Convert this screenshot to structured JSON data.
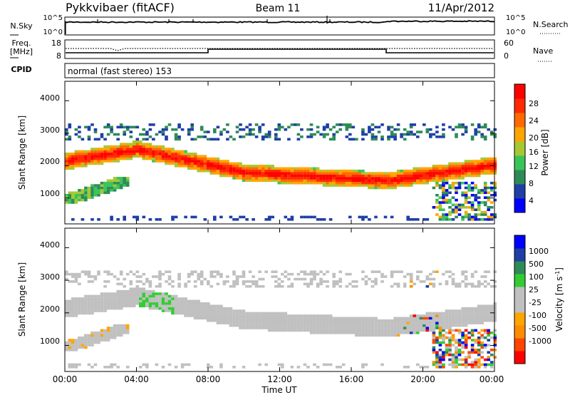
{
  "header": {
    "radar": "Pykkvibaer (fitACF)",
    "beam": "Beam 11",
    "date": "11/Apr/2012"
  },
  "noise_panel": {
    "left_label": "N.Sky",
    "right_label": "N.Search",
    "left_ticks": [
      "10^5",
      "10^0"
    ],
    "right_ticks": [
      "10^5",
      "10^0"
    ]
  },
  "freq_panel": {
    "left_label_1": "Freq.",
    "left_label_2": "[MHz]",
    "right_label": "Nave",
    "left_ticks": [
      "18",
      "8"
    ],
    "right_ticks": [
      "60",
      "0"
    ]
  },
  "cpid": {
    "label": "CPID",
    "value": "normal (fast stereo) 153"
  },
  "colors": {
    "power_scale": [
      "#0000ff",
      "#1f3fa6",
      "#2e8b57",
      "#39c45a",
      "#a6c832",
      "#ffa500",
      "#ff6a00",
      "#ff2a00",
      "#ff0000"
    ],
    "velocity_scale": [
      "#ff0000",
      "#ff4500",
      "#ff8c00",
      "#ffa500",
      "#c0c0c0",
      "#c0c0c0",
      "#32cd32",
      "#2e8b57",
      "#1f3fa6",
      "#0000ff"
    ],
    "gray": "#c0c0c0"
  },
  "chart_data": [
    {
      "type": "heatmap",
      "ylabel": "Slant Range [km]",
      "ylim": [
        200,
        4600
      ],
      "yticks": [
        "1000",
        "2000",
        "3000",
        "4000"
      ],
      "xlim": [
        "00:00",
        "24:00"
      ],
      "xticks": [
        "00:00",
        "04:00",
        "08:00",
        "12:00",
        "16:00",
        "20:00",
        "00:00"
      ],
      "colorbar": {
        "label": "Power [dB]",
        "ticks": [
          "4",
          "8",
          "12",
          "16",
          "20",
          "24",
          "28"
        ],
        "range": [
          0,
          30
        ]
      }
    },
    {
      "type": "heatmap",
      "ylabel": "Slant Range [km]",
      "ylim": [
        200,
        4600
      ],
      "yticks": [
        "1000",
        "2000",
        "3000",
        "4000"
      ],
      "xlabel": "Time UT",
      "xlim": [
        "00:00",
        "24:00"
      ],
      "xticks": [
        "00:00",
        "04:00",
        "08:00",
        "12:00",
        "16:00",
        "20:00",
        "00:00"
      ],
      "colorbar": {
        "label": "Velocity [m s-1]",
        "ticks": [
          "1000",
          "500",
          "100",
          "25",
          "-25",
          "-100",
          "-500",
          "-1000"
        ]
      }
    }
  ]
}
